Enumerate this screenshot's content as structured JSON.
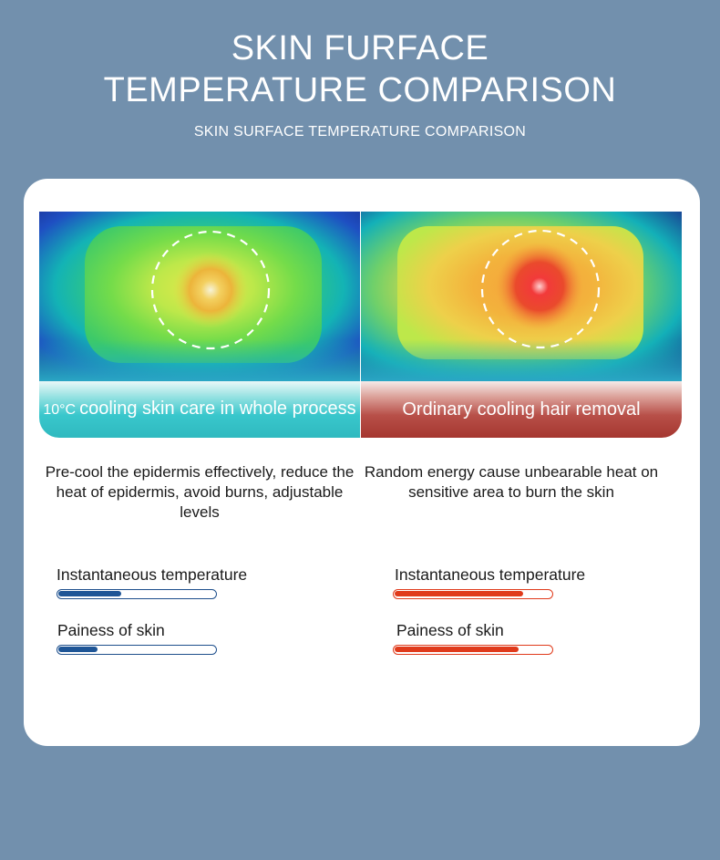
{
  "header": {
    "title_line1": "SKIN FURFACE",
    "title_line2": "TEMPERATURE COMPARISON",
    "subtitle": "SKIN SURFACE TEMPERATURE COMPARISON"
  },
  "left_panel": {
    "banner_degree": "10°C",
    "banner_text": "cooling skin care in whole process",
    "description": "Pre-cool the epidermis effectively, reduce the heat of epidermis, avoid burns, adjustable levels",
    "metrics": [
      {
        "label": "Instantaneous temperature",
        "level_percent": 40
      },
      {
        "label": "Painess of skin",
        "level_percent": 25
      }
    ],
    "bar_color": "#1e5596"
  },
  "right_panel": {
    "banner_text": "Ordinary cooling hair removal",
    "description": "Random energy cause unbearable heat on sensitive area to burn the skin",
    "metrics": [
      {
        "label": "Instantaneous temperature",
        "level_percent": 82
      },
      {
        "label": "Painess of skin",
        "level_percent": 79
      }
    ],
    "bar_color": "#e03a1b"
  }
}
